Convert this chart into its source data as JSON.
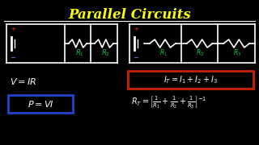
{
  "title": "Parallel Circuits",
  "title_color": "#FFFF00",
  "bg_color": "#000000",
  "white": "#FFFFFF",
  "red": "#CC2200",
  "green": "#00CC44",
  "blue": "#2244CC",
  "lw": 1.2
}
